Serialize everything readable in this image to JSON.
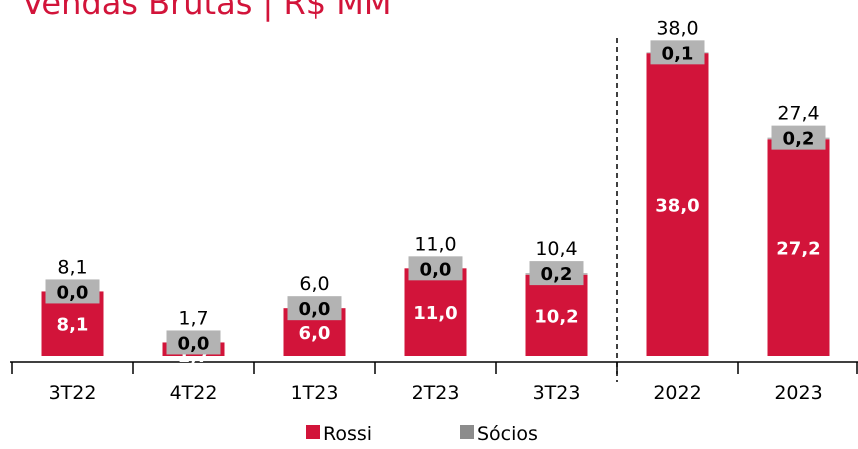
{
  "chart_data": {
    "type": "stacked_bar",
    "title": "Vendas Brutas | R$ MM",
    "categories": [
      "3T22",
      "4T22",
      "1T23",
      "2T23",
      "3T23",
      "2022",
      "2023"
    ],
    "series": [
      {
        "name": "Rossi",
        "color": "#d2143a",
        "values": [
          8.1,
          1.7,
          6.0,
          11.0,
          10.2,
          38.0,
          27.2
        ],
        "value_labels": [
          "8,1",
          "1,7",
          "6,0",
          "11,0",
          "10,2",
          "38,0",
          "27,2"
        ]
      },
      {
        "name": "Sócios",
        "color": "#b3b3b3",
        "values": [
          0.0,
          0.0,
          0.0,
          0.0,
          0.2,
          0.1,
          0.2
        ],
        "value_labels": [
          "0,0",
          "0,0",
          "0,0",
          "0,0",
          "0,2",
          "0,1",
          "0,2"
        ]
      }
    ],
    "totals": [
      8.1,
      1.7,
      6.0,
      11.0,
      10.4,
      38.0,
      27.4
    ],
    "total_labels": [
      "8,1",
      "1,7",
      "6,0",
      "11,0",
      "10,4",
      "38,0",
      "27,4"
    ]
  }
}
